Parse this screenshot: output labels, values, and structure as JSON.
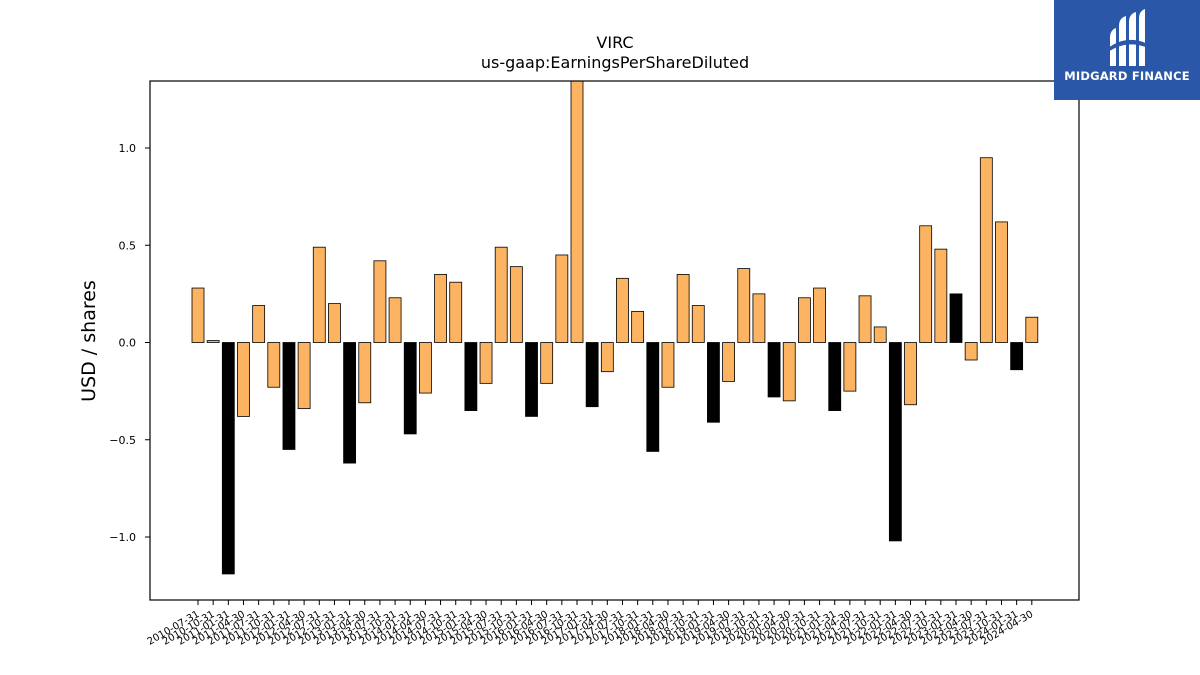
{
  "chart_data": {
    "type": "bar",
    "title": "VIRC",
    "subtitle": "us-gaap:EarningsPerShareDiluted",
    "ylabel": "USD / shares",
    "xlabel": "",
    "ylim": [
      -1.33,
      1.34
    ],
    "yticks": [
      -1.0,
      -0.5,
      0.0,
      0.5,
      1.0
    ],
    "ytick_labels": [
      "−1.0",
      "−0.5",
      "0.0",
      "0.5",
      "1.0"
    ],
    "grid": false,
    "legend": "none",
    "colors": {
      "quarter": "#fdb462",
      "annual": "#000000",
      "edge": "#000000"
    },
    "categories": [
      "2010-07-31",
      "2010-10-31",
      "2011-01-31",
      "2011-04-30",
      "2011-07-31",
      "2011-10-31",
      "2012-01-31",
      "2012-04-30",
      "2012-07-31",
      "2012-10-31",
      "2013-01-31",
      "2013-04-30",
      "2013-07-31",
      "2013-10-31",
      "2014-01-31",
      "2014-04-30",
      "2014-07-31",
      "2014-10-31",
      "2015-01-31",
      "2015-04-30",
      "2015-07-31",
      "2015-10-31",
      "2016-01-31",
      "2016-04-30",
      "2016-07-31",
      "2016-10-31",
      "2017-01-31",
      "2017-04-30",
      "2017-07-31",
      "2017-10-31",
      "2018-01-31",
      "2018-04-30",
      "2018-07-31",
      "2018-10-31",
      "2019-01-31",
      "2019-04-30",
      "2019-07-31",
      "2019-10-31",
      "2020-01-31",
      "2020-04-30",
      "2020-07-31",
      "2020-10-31",
      "2021-01-31",
      "2021-04-30",
      "2021-07-31",
      "2021-10-31",
      "2022-01-31",
      "2022-04-30",
      "2022-07-31",
      "2022-10-31",
      "2023-01-31",
      "2023-04-30",
      "2023-07-31",
      "2023-10-31",
      "2024-01-31",
      "2024-04-30"
    ],
    "values": [
      0.28,
      0.01,
      -1.19,
      -0.38,
      0.19,
      -0.23,
      -0.55,
      -0.34,
      0.49,
      0.2,
      -0.62,
      -0.31,
      0.42,
      0.23,
      -0.47,
      -0.26,
      0.35,
      0.31,
      -0.35,
      -0.21,
      0.49,
      0.39,
      -0.38,
      -0.21,
      0.45,
      1.38,
      -0.33,
      -0.15,
      0.33,
      0.16,
      -0.56,
      -0.23,
      0.35,
      0.19,
      -0.41,
      -0.2,
      0.38,
      0.25,
      -0.28,
      -0.3,
      0.23,
      0.28,
      -0.35,
      -0.25,
      0.24,
      0.08,
      -1.02,
      -0.32,
      0.6,
      0.48,
      0.25,
      -0.09,
      0.95,
      0.62,
      -0.14,
      0.13
    ],
    "annual": [
      false,
      false,
      true,
      false,
      false,
      false,
      true,
      false,
      false,
      false,
      true,
      false,
      false,
      false,
      true,
      false,
      false,
      false,
      true,
      false,
      false,
      false,
      true,
      false,
      false,
      false,
      true,
      false,
      false,
      false,
      true,
      false,
      false,
      false,
      true,
      false,
      false,
      false,
      true,
      false,
      false,
      false,
      true,
      false,
      false,
      false,
      true,
      false,
      false,
      false,
      true,
      false,
      false,
      false,
      true,
      false
    ]
  },
  "logo": {
    "text": "MIDGARD FINANCE"
  }
}
